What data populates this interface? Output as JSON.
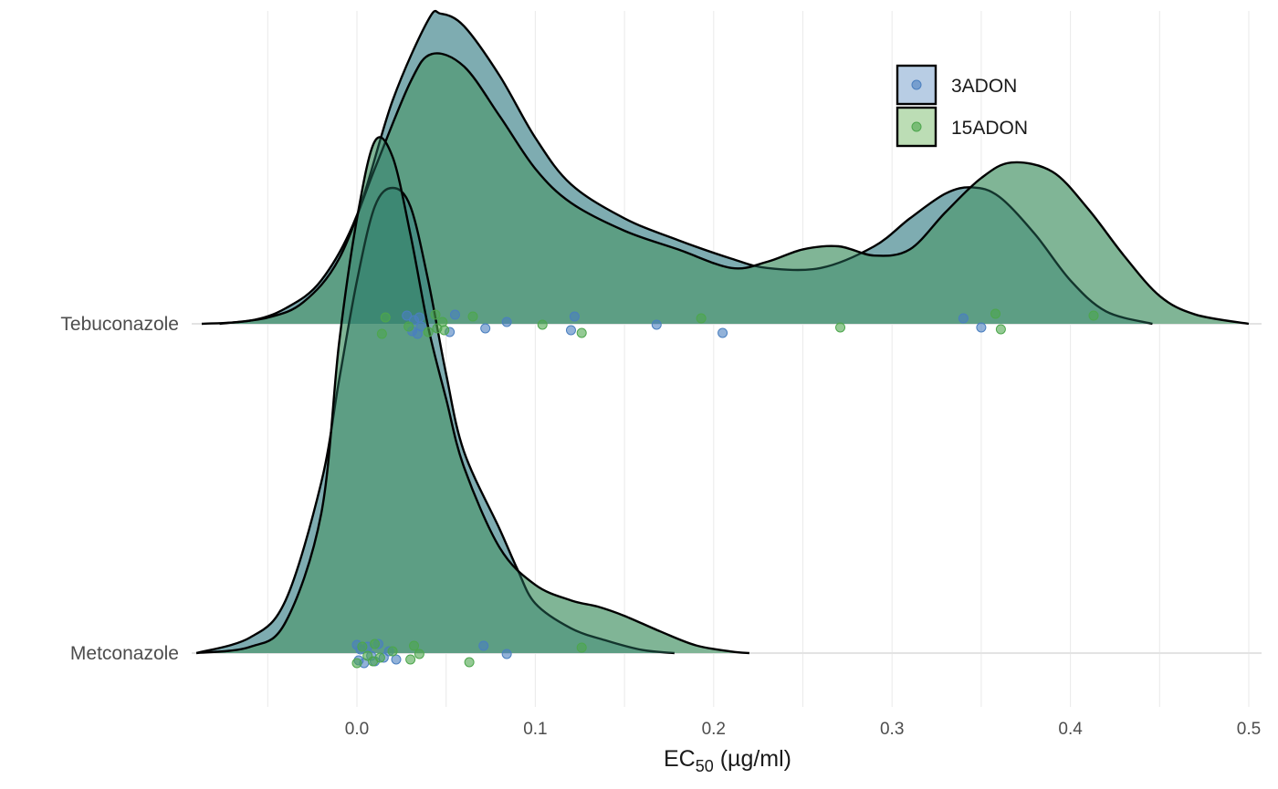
{
  "chart_data": {
    "type": "ridgeline_density",
    "xlabel": {
      "prefix": "EC",
      "subscript": "50",
      "suffix": " (µg/ml)"
    },
    "xlim": [
      -0.1,
      0.5
    ],
    "xticks": [
      0.0,
      0.1,
      0.2,
      0.3,
      0.4,
      0.5
    ],
    "xtick_labels": [
      "0.0",
      "0.1",
      "0.2",
      "0.3",
      "0.4",
      "0.5"
    ],
    "categories": [
      "Metconazole",
      "Tebuconazole"
    ],
    "grid": true,
    "legend_position": "top-right",
    "series": [
      {
        "name": "3ADON",
        "fill": "#b8cde4",
        "point_color": "#4a7fbf"
      },
      {
        "name": "15ADON",
        "fill": "#bcddb5",
        "point_color": "#4da64d"
      }
    ],
    "overlap_fill": "#8fbab4",
    "densities": [
      {
        "category": "Tebuconazole",
        "group": "3ADON",
        "x": [
          -0.087,
          -0.06,
          -0.04,
          -0.02,
          0.0,
          0.02,
          0.04,
          0.047,
          0.06,
          0.08,
          0.1,
          0.12,
          0.15,
          0.18,
          0.21,
          0.23,
          0.26,
          0.29,
          0.31,
          0.33,
          0.345,
          0.36,
          0.38,
          0.4,
          0.42,
          0.446
        ],
        "y": [
          0.0,
          0.01,
          0.05,
          0.14,
          0.35,
          0.72,
          0.98,
          1.0,
          0.96,
          0.8,
          0.6,
          0.45,
          0.34,
          0.27,
          0.21,
          0.18,
          0.18,
          0.25,
          0.34,
          0.42,
          0.44,
          0.41,
          0.29,
          0.14,
          0.04,
          0.0
        ]
      },
      {
        "category": "Tebuconazole",
        "group": "15ADON",
        "x": [
          -0.077,
          -0.05,
          -0.03,
          -0.01,
          0.01,
          0.03,
          0.042,
          0.06,
          0.08,
          0.1,
          0.12,
          0.15,
          0.18,
          0.21,
          0.23,
          0.25,
          0.27,
          0.29,
          0.31,
          0.33,
          0.35,
          0.367,
          0.39,
          0.41,
          0.43,
          0.45,
          0.47,
          0.5
        ],
        "y": [
          0.0,
          0.02,
          0.07,
          0.21,
          0.5,
          0.78,
          0.87,
          0.83,
          0.67,
          0.5,
          0.39,
          0.3,
          0.24,
          0.18,
          0.2,
          0.24,
          0.25,
          0.22,
          0.24,
          0.36,
          0.47,
          0.52,
          0.49,
          0.37,
          0.22,
          0.09,
          0.03,
          0.0
        ]
      },
      {
        "category": "Metconazole",
        "group": "3ADON",
        "x": [
          -0.09,
          -0.06,
          -0.04,
          -0.02,
          -0.01,
          0.0,
          0.01,
          0.02,
          0.03,
          0.04,
          0.05,
          0.06,
          0.08,
          0.09,
          0.1,
          0.12,
          0.14,
          0.16,
          0.178
        ],
        "y": [
          0.0,
          0.05,
          0.17,
          0.55,
          0.88,
          1.2,
          1.44,
          1.5,
          1.44,
          1.2,
          0.9,
          0.65,
          0.4,
          0.27,
          0.16,
          0.08,
          0.04,
          0.01,
          0.0
        ]
      },
      {
        "category": "Metconazole",
        "group": "15ADON",
        "x": [
          -0.09,
          -0.06,
          -0.04,
          -0.02,
          -0.01,
          0.0,
          0.01,
          0.02,
          0.03,
          0.04,
          0.05,
          0.06,
          0.08,
          0.1,
          0.12,
          0.135,
          0.15,
          0.17,
          0.19,
          0.21,
          0.22
        ],
        "y": [
          0.0,
          0.02,
          0.1,
          0.45,
          1.0,
          1.4,
          1.65,
          1.6,
          1.35,
          1.05,
          0.82,
          0.6,
          0.34,
          0.22,
          0.17,
          0.15,
          0.12,
          0.07,
          0.025,
          0.005,
          0.0
        ]
      }
    ],
    "points": [
      {
        "category": "Tebuconazole",
        "group": "3ADON",
        "values": [
          0.028,
          0.031,
          0.032,
          0.034,
          0.035,
          0.036,
          0.052,
          0.055,
          0.072,
          0.084,
          0.12,
          0.122,
          0.168,
          0.205,
          0.34,
          0.35
        ]
      },
      {
        "category": "Tebuconazole",
        "group": "15ADON",
        "values": [
          0.014,
          0.016,
          0.029,
          0.04,
          0.044,
          0.045,
          0.048,
          0.049,
          0.065,
          0.104,
          0.126,
          0.193,
          0.271,
          0.358,
          0.361,
          0.413
        ]
      },
      {
        "category": "Metconazole",
        "group": "3ADON",
        "values": [
          0.0,
          0.001,
          0.002,
          0.004,
          0.006,
          0.008,
          0.01,
          0.012,
          0.015,
          0.018,
          0.022,
          0.071,
          0.084
        ]
      },
      {
        "category": "Metconazole",
        "group": "15ADON",
        "values": [
          0.0,
          0.003,
          0.006,
          0.009,
          0.01,
          0.013,
          0.02,
          0.03,
          0.032,
          0.035,
          0.063,
          0.126
        ]
      }
    ]
  }
}
